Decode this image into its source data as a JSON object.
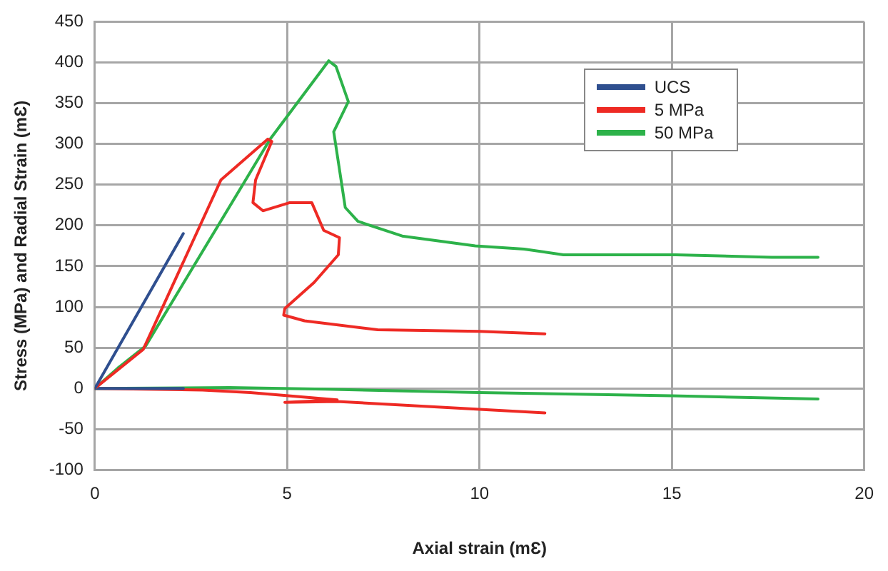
{
  "chart_data": {
    "type": "line",
    "xlabel": "Axial strain (mƐ)",
    "ylabel": "Stress (MPa) and Radial Strain (mƐ)",
    "xlim": [
      0,
      20
    ],
    "xticks": [
      0,
      5,
      10,
      15,
      20
    ],
    "ylim": [
      -100,
      450
    ],
    "yticks": [
      -100,
      -50,
      0,
      50,
      100,
      150,
      200,
      250,
      300,
      350,
      400,
      450
    ],
    "grid": true,
    "legend": "top right",
    "marker": "none",
    "line_style": "solid",
    "series": [
      {
        "name": "UCS",
        "color": "#2f4f8f",
        "x": [
          0,
          2.3
        ],
        "values": [
          0,
          190
        ]
      },
      {
        "name": "5 MPa",
        "color": "#ee2a24",
        "x": [
          0,
          1.26,
          2.27,
          3.28,
          4.5,
          4.6,
          4.18,
          4.11,
          4.37,
          5.07,
          5.64,
          5.95,
          6.36,
          6.33,
          5.7,
          4.94,
          4.91,
          5.45,
          7.35,
          10,
          11.7
        ],
        "values": [
          0,
          48,
          152,
          256,
          306,
          303,
          256,
          228,
          218,
          228,
          228,
          194,
          185,
          164,
          130,
          98,
          90,
          83,
          72,
          70,
          67
        ]
      },
      {
        "name": "50 MPa",
        "color": "#2db24a",
        "x": [
          0,
          0.6,
          1.32,
          4.56,
          6.08,
          6.27,
          6.59,
          6.21,
          6.51,
          6.84,
          7.99,
          9.89,
          11.16,
          12.18,
          15.1,
          17.6,
          18.8
        ],
        "values": [
          0,
          25,
          52,
          306,
          402,
          395,
          352,
          315,
          222,
          205,
          187,
          175,
          171,
          164,
          164,
          161,
          161
        ]
      },
      {
        "color": "#2f4f8f",
        "x": [
          0,
          2.3
        ],
        "values": [
          0,
          0
        ]
      },
      {
        "color": "#ee2a24",
        "x": [
          0,
          2.8,
          4.04,
          6.3,
          4.94,
          6.3,
          11.7
        ],
        "values": [
          0,
          -2,
          -5,
          -14,
          -17,
          -16,
          -30
        ]
      },
      {
        "color": "#2db24a",
        "x": [
          0,
          3.5,
          6,
          10,
          15,
          18.8
        ],
        "values": [
          0,
          1,
          -1,
          -5,
          -9,
          -13
        ]
      }
    ]
  }
}
